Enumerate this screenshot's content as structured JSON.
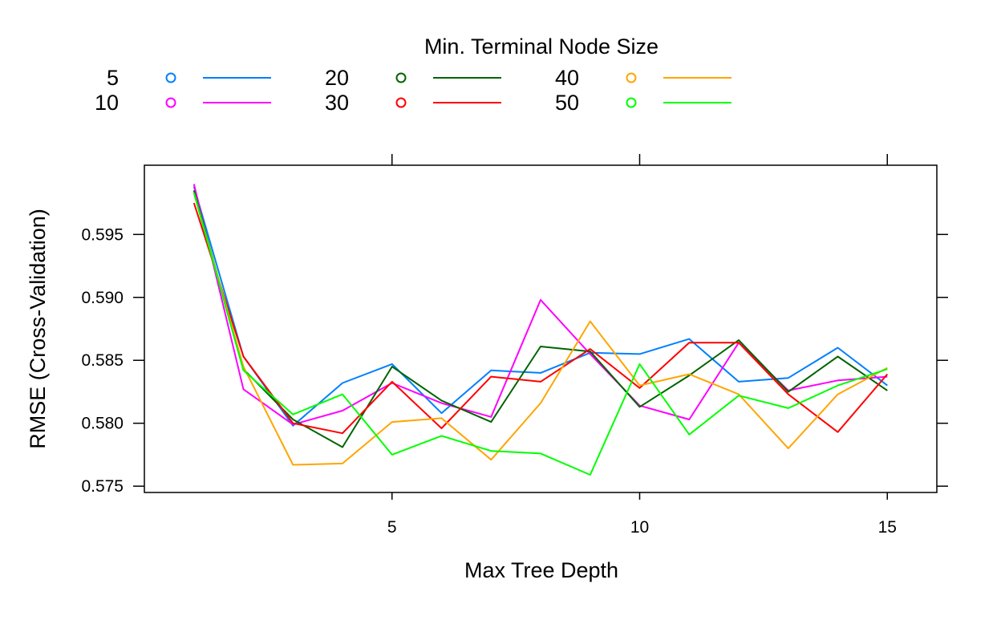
{
  "chart_data": {
    "type": "line",
    "xlabel": "Max Tree Depth",
    "ylabel": "RMSE (Cross-Validation)",
    "legend": {
      "title": "Min. Terminal Node Size",
      "position": "top"
    },
    "x": [
      1,
      2,
      3,
      4,
      5,
      6,
      7,
      8,
      9,
      10,
      11,
      12,
      13,
      14,
      15
    ],
    "xlim": [
      0,
      16
    ],
    "ylim": [
      0.5745,
      0.6005
    ],
    "xticks": [
      5,
      10,
      15
    ],
    "xtick_labels": [
      "5",
      "10",
      "15"
    ],
    "yticks": [
      0.575,
      0.58,
      0.585,
      0.59,
      0.595
    ],
    "ytick_labels": [
      "0.575",
      "0.580",
      "0.585",
      "0.590",
      "0.595"
    ],
    "grid": false,
    "series": [
      {
        "name": "5",
        "color": "#0080ff",
        "values": [
          0.5988,
          0.5853,
          0.5798,
          0.5832,
          0.5847,
          0.5808,
          0.5842,
          0.584,
          0.5856,
          0.5855,
          0.5867,
          0.5833,
          0.5836,
          0.586,
          0.583
        ]
      },
      {
        "name": "10",
        "color": "#ff00ff",
        "values": [
          0.599,
          0.5827,
          0.5799,
          0.581,
          0.5832,
          0.5816,
          0.5805,
          0.5898,
          0.5855,
          0.5814,
          0.5803,
          0.5864,
          0.5826,
          0.5834,
          0.5837
        ]
      },
      {
        "name": "20",
        "color": "#006400",
        "values": [
          0.5985,
          0.5843,
          0.5803,
          0.5781,
          0.5845,
          0.5818,
          0.5801,
          0.5861,
          0.5857,
          0.5813,
          0.5838,
          0.5866,
          0.5825,
          0.5853,
          0.5826
        ]
      },
      {
        "name": "30",
        "color": "#ff0000",
        "values": [
          0.5975,
          0.5853,
          0.58,
          0.5792,
          0.5833,
          0.5796,
          0.5837,
          0.5833,
          0.5859,
          0.5828,
          0.5864,
          0.5864,
          0.5823,
          0.5793,
          0.5839
        ]
      },
      {
        "name": "40",
        "color": "#ffa500",
        "values": [
          0.5983,
          0.5845,
          0.5767,
          0.5768,
          0.5801,
          0.5804,
          0.5771,
          0.5816,
          0.5881,
          0.583,
          0.5839,
          0.5823,
          0.578,
          0.5823,
          0.5844
        ]
      },
      {
        "name": "50",
        "color": "#00ff00",
        "values": [
          0.5983,
          0.5842,
          0.5807,
          0.5823,
          0.5775,
          0.579,
          0.5778,
          0.5776,
          0.5759,
          0.5847,
          0.5791,
          0.5822,
          0.5812,
          0.583,
          0.5843
        ]
      }
    ]
  }
}
